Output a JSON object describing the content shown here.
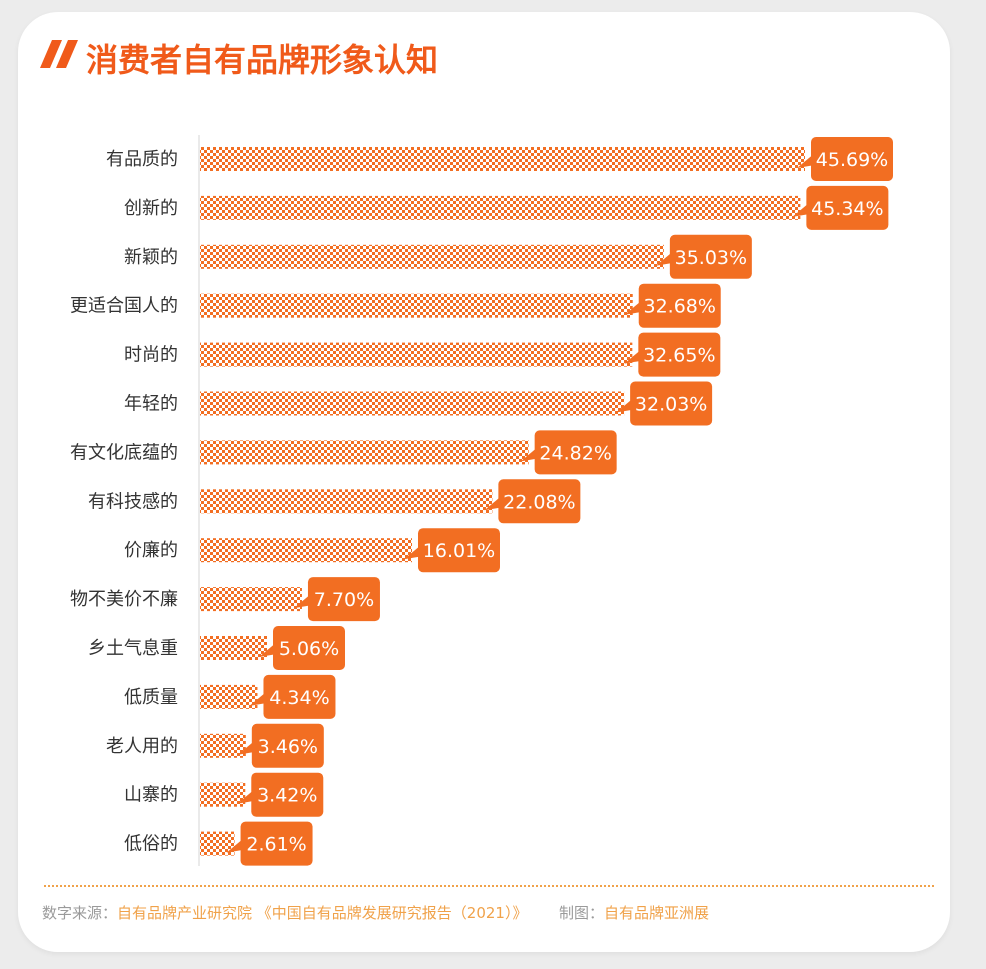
{
  "title": "消费者自有品牌形象认知",
  "source": {
    "source_label": "数字来源：",
    "source_value": "自有品牌产业研究院 《中国自有品牌发展研究报告（2021）》",
    "maker_label": "制图：",
    "maker_value": "自有品牌亚洲展"
  },
  "colors": {
    "accent": "#f05a1a",
    "bar": "#f26e22",
    "label_bg": "#f26e22",
    "source": "#f0a24a"
  },
  "chart_data": {
    "type": "bar",
    "orientation": "horizontal",
    "title": "消费者自有品牌形象认知",
    "categories": [
      "有品质的",
      "创新的",
      "新颖的",
      "更适合国人的",
      "时尚的",
      "年轻的",
      "有文化底蕴的",
      "有科技感的",
      "价廉的",
      "物不美价不廉",
      "乡土气息重",
      "低质量",
      "老人用的",
      "山寨的",
      "低俗的"
    ],
    "values": [
      45.69,
      45.34,
      35.03,
      32.68,
      32.65,
      32.03,
      24.82,
      22.08,
      16.01,
      7.7,
      5.06,
      4.34,
      3.46,
      3.42,
      2.61
    ],
    "value_labels": [
      "45.69%",
      "45.34%",
      "35.03%",
      "32.68%",
      "32.65%",
      "32.03%",
      "24.82%",
      "22.08%",
      "16.01%",
      "7.70%",
      "5.06%",
      "4.34%",
      "3.46%",
      "3.42%",
      "2.61%"
    ],
    "xlim": [
      0,
      45.69
    ],
    "grid": false,
    "legend": "none"
  }
}
